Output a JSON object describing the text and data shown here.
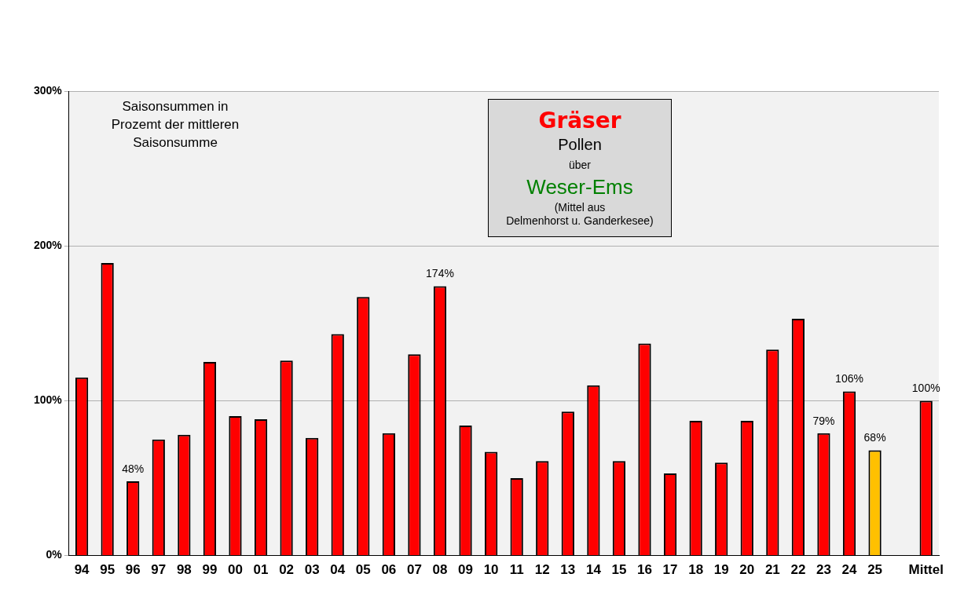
{
  "chart_data": {
    "type": "bar",
    "title": "Gräser",
    "annotations": [
      "Pollen",
      "über",
      "Weser-Ems",
      "(Mittel aus\nDelmenhorst  u. Ganderkesee)",
      "Saisonsummen  in\nProzemt der mittleren\nSaisonsumme"
    ],
    "categories": [
      "94",
      "95",
      "96",
      "97",
      "98",
      "99",
      "00",
      "01",
      "02",
      "03",
      "04",
      "05",
      "06",
      "07",
      "08",
      "09",
      "10",
      "11",
      "12",
      "13",
      "14",
      "15",
      "16",
      "17",
      "18",
      "19",
      "20",
      "21",
      "22",
      "23",
      "24",
      "25",
      null,
      "Mittel"
    ],
    "values": [
      115,
      189,
      48,
      75,
      78,
      125,
      90,
      88,
      126,
      76,
      143,
      167,
      79,
      130,
      174,
      84,
      67,
      50,
      61,
      93,
      110,
      61,
      137,
      53,
      87,
      60,
      87,
      133,
      153,
      79,
      106,
      68,
      null,
      100
    ],
    "colors": [
      "#ff0000",
      "#ff0000",
      "#ff0000",
      "#ff0000",
      "#ff0000",
      "#ff0000",
      "#ff0000",
      "#ff0000",
      "#ff0000",
      "#ff0000",
      "#ff0000",
      "#ff0000",
      "#ff0000",
      "#ff0000",
      "#ff0000",
      "#ff0000",
      "#ff0000",
      "#ff0000",
      "#ff0000",
      "#ff0000",
      "#ff0000",
      "#ff0000",
      "#ff0000",
      "#ff0000",
      "#ff0000",
      "#ff0000",
      "#ff0000",
      "#ff0000",
      "#ff0000",
      "#ff0000",
      "#ff0000",
      "#ffc000",
      null,
      "#ff0000"
    ],
    "value_labels": [
      null,
      null,
      "48%",
      null,
      null,
      null,
      null,
      null,
      null,
      null,
      null,
      null,
      null,
      null,
      "174%",
      null,
      null,
      null,
      null,
      null,
      null,
      null,
      null,
      null,
      null,
      null,
      null,
      null,
      null,
      "79%",
      "106%",
      "68%",
      null,
      "100%"
    ],
    "ylim": [
      0,
      300
    ],
    "yticks": [
      {
        "value": 0,
        "label": "0%"
      },
      {
        "value": 100,
        "label": "100%"
      },
      {
        "value": 200,
        "label": "200%"
      },
      {
        "value": 300,
        "label": "300%"
      }
    ],
    "grid": "y"
  }
}
